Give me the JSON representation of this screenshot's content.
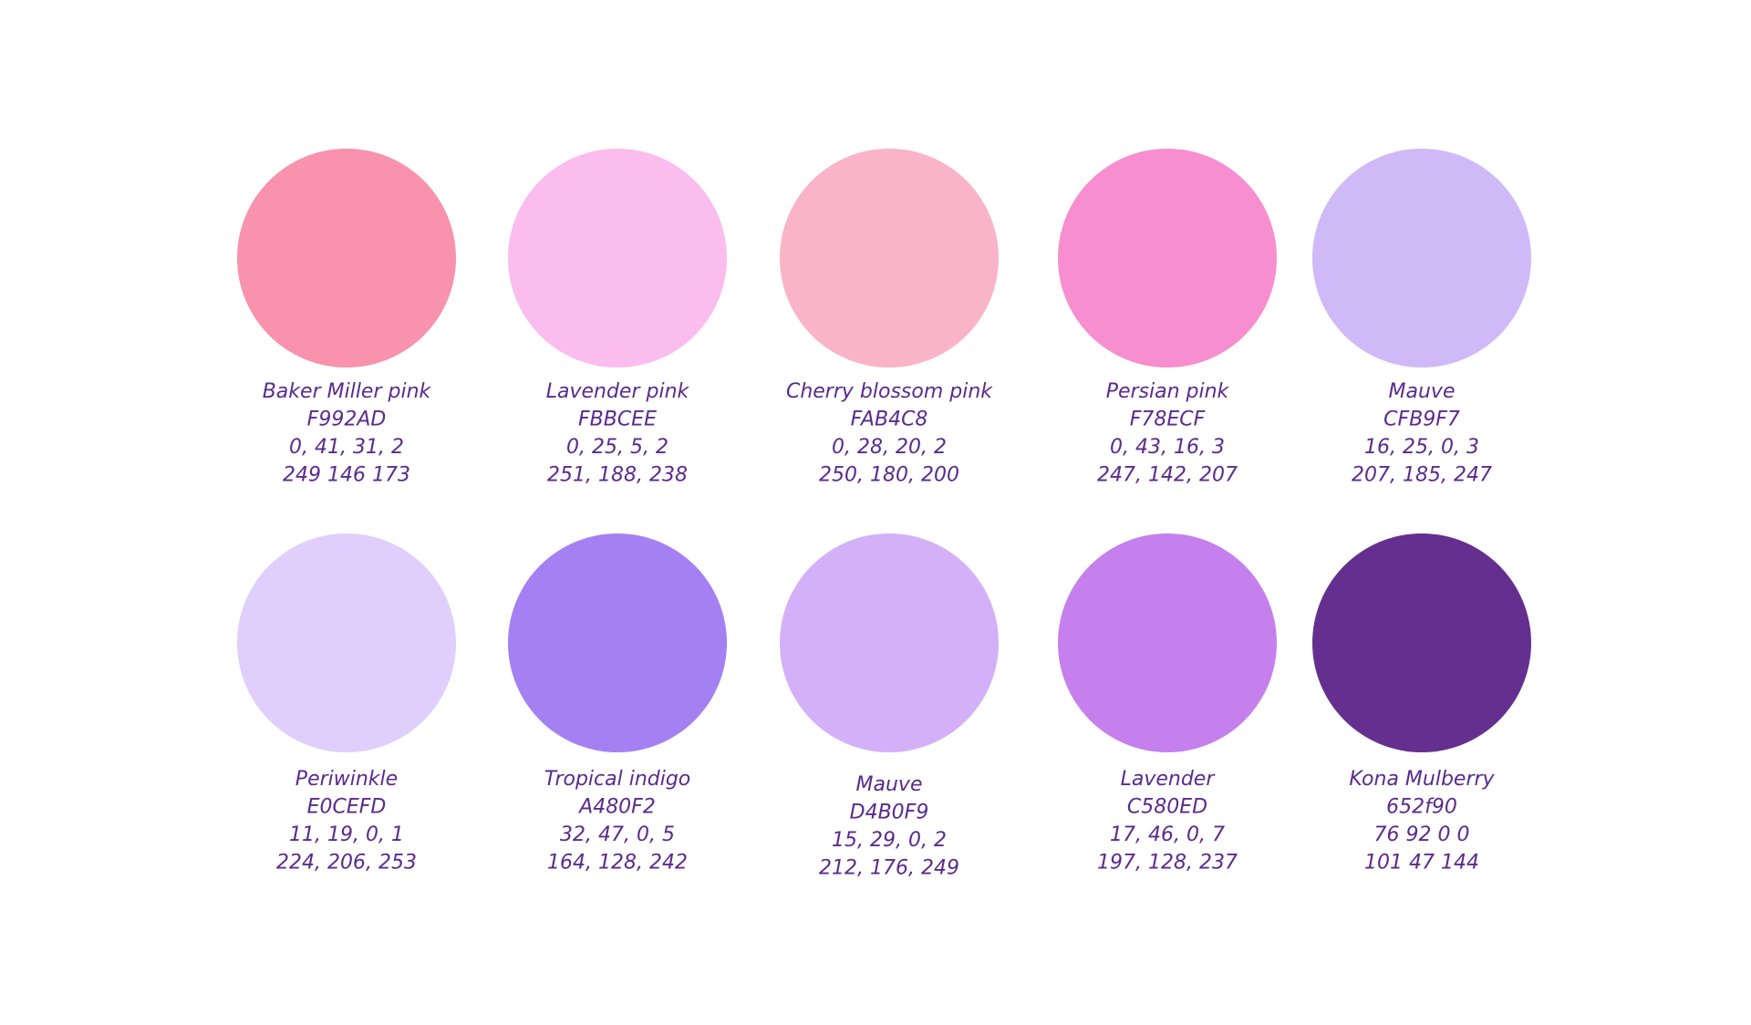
{
  "swatches": [
    [
      {
        "name": "Baker Miller pink",
        "hex": "F992AD",
        "cmyk": "0, 41, 31, 2",
        "rgb": "249 146 173",
        "color": "#f992ad"
      },
      {
        "name": "Lavender pink",
        "hex": "FBBCEE",
        "cmyk": "0, 25, 5, 2",
        "rgb": "251, 188, 238",
        "color": "#fbbcee"
      },
      {
        "name": "Cherry blossom pink",
        "hex": "FAB4C8",
        "cmyk": "0, 28, 20, 2",
        "rgb": "250, 180, 200",
        "color": "#fab4c8"
      },
      {
        "name": "Persian pink",
        "hex": "F78ECF",
        "cmyk": "0, 43, 16, 3",
        "rgb": "247, 142, 207",
        "color": "#f78ecf"
      },
      {
        "name": "Mauve",
        "hex": "CFB9F7",
        "cmyk": "16, 25, 0, 3",
        "rgb": "207, 185, 247",
        "color": "#cfb9f7"
      }
    ],
    [
      {
        "name": "Periwinkle",
        "hex": "E0CEFD",
        "cmyk": "11, 19, 0, 1",
        "rgb": "224, 206, 253",
        "color": "#e0cefd"
      },
      {
        "name": "Tropical indigo",
        "hex": "A480F2",
        "cmyk": "32, 47, 0, 5",
        "rgb": "164, 128, 242",
        "color": "#a480f2"
      },
      {
        "name": "Mauve",
        "hex": "D4B0F9",
        "cmyk": "15, 29, 0, 2",
        "rgb": "212, 176, 249",
        "color": "#d4b0f9"
      },
      {
        "name": "Lavender",
        "hex": "C580ED",
        "cmyk": "17, 46, 0, 7",
        "rgb": "197, 128, 237",
        "color": "#c580ed"
      },
      {
        "name": "Kona Mulberry",
        "hex": "652f90",
        "cmyk": "76 92 0 0",
        "rgb": "101 47 144",
        "color": "#652f90"
      }
    ]
  ]
}
